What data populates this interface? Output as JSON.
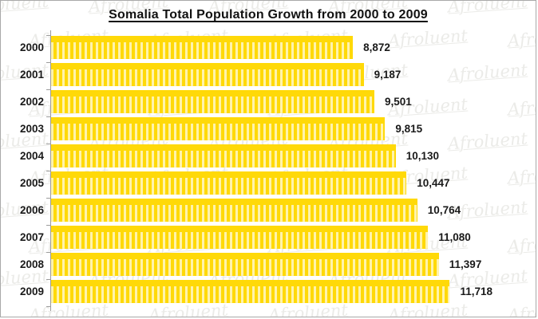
{
  "title": "Somalia Total Population Growth from 2000 to 2009",
  "watermark": {
    "text": "Afroluent"
  },
  "chart_data": {
    "type": "bar",
    "orientation": "horizontal",
    "title": "Somalia Total Population Growth from 2000 to 2009",
    "xlabel": "",
    "ylabel": "",
    "categories": [
      "2000",
      "2001",
      "2002",
      "2003",
      "2004",
      "2005",
      "2006",
      "2007",
      "2008",
      "2009"
    ],
    "values": [
      8872,
      9187,
      9501,
      9815,
      10130,
      10447,
      10764,
      11080,
      11397,
      11718
    ],
    "value_labels": [
      "8,872",
      "9,187",
      "9,501",
      "9,815",
      "10,130",
      "10,447",
      "10,764",
      "11,080",
      "11,397",
      "11,718"
    ],
    "xlim": [
      0,
      14100
    ],
    "grid": false,
    "legend": false,
    "data_labels": true,
    "bar_color": "#FFD908",
    "bar_stripe_color": "#FFF3AC",
    "label_color": "#1A1A1A",
    "axis_color": "#9B9B9B",
    "title_color": "#111111",
    "watermark_color": "#EBEBE8"
  }
}
